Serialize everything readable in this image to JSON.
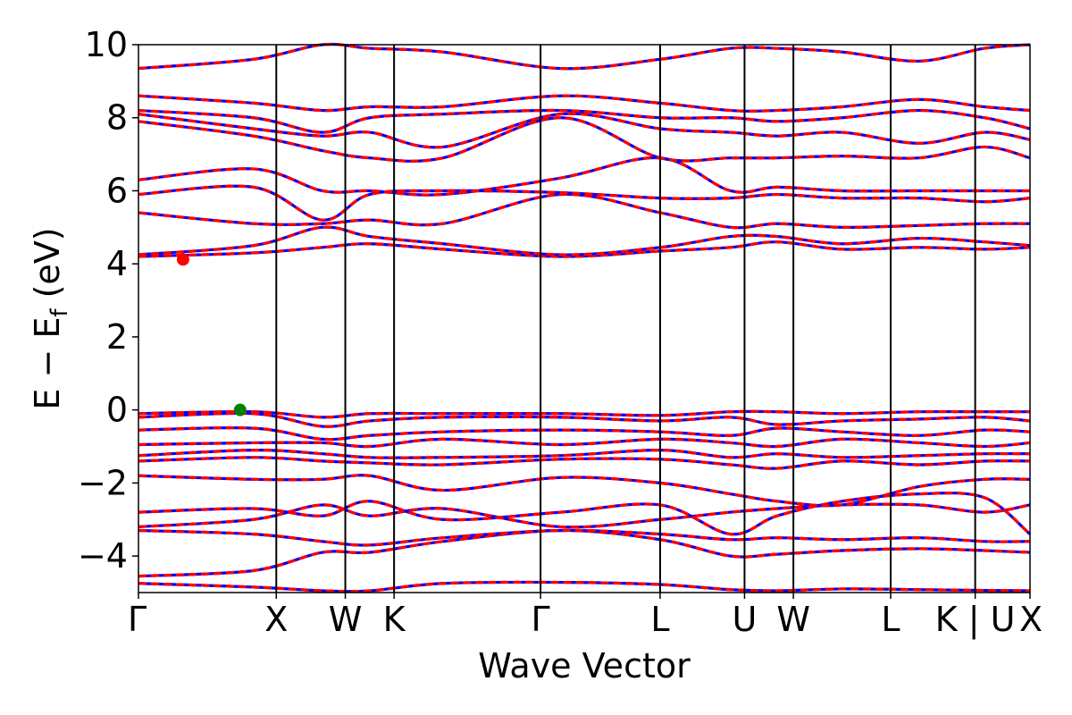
{
  "chart_data": {
    "type": "line",
    "title": "",
    "xlabel": "Wave Vector",
    "ylabel_main": "E − E",
    "ylabel_sub": "f",
    "ylabel_unit": " (eV)",
    "ylim": [
      -5,
      10
    ],
    "yticks": [
      {
        "value": -4,
        "label": "−4"
      },
      {
        "value": -2,
        "label": "−2"
      },
      {
        "value": 0,
        "label": "0"
      },
      {
        "value": 2,
        "label": "2"
      },
      {
        "value": 4,
        "label": "4"
      },
      {
        "value": 6,
        "label": "6"
      },
      {
        "value": 8,
        "label": "8"
      },
      {
        "value": 10,
        "label": "10"
      }
    ],
    "xlim": [
      0,
      1
    ],
    "kpath": [
      {
        "label": "Γ",
        "pos": 0.0
      },
      {
        "label": "X",
        "pos": 0.1546
      },
      {
        "label": "W",
        "pos": 0.232
      },
      {
        "label": "K",
        "pos": 0.2867
      },
      {
        "label": "Γ",
        "pos": 0.451
      },
      {
        "label": "L",
        "pos": 0.5851
      },
      {
        "label": "U",
        "pos": 0.6798
      },
      {
        "label": "W",
        "pos": 0.7346
      },
      {
        "label": "L",
        "pos": 0.8437
      },
      {
        "label": "K | U",
        "pos": 0.9385
      },
      {
        "label": "X",
        "pos": 1.0
      }
    ],
    "colors": {
      "band_primary": "#ff0000",
      "band_secondary": "#0000ff",
      "vbm": "#008000",
      "cbm": "#ff0000"
    },
    "grid": false,
    "legend": "none",
    "band_edges": [
      {
        "name": "CBM",
        "x": 0.05,
        "y": 4.12
      },
      {
        "name": "VBM",
        "x": 0.114,
        "y": 0.0
      }
    ],
    "bands": [
      {
        "name": "valence-1",
        "y": [
          -4.75,
          -4.85,
          -4.95,
          -4.95,
          -4.75,
          -4.72,
          -4.78,
          -4.92,
          -4.95,
          -4.9,
          -4.92,
          -4.94,
          -4.95
        ]
      },
      {
        "name": "valence-2",
        "y": [
          -4.55,
          -4.4,
          -3.9,
          -3.9,
          -3.6,
          -3.3,
          -3.55,
          -4.0,
          -3.95,
          -3.85,
          -3.8,
          -3.85,
          -3.9
        ]
      },
      {
        "name": "valence-3",
        "y": [
          -3.3,
          -3.4,
          -3.6,
          -3.7,
          -3.5,
          -3.3,
          -3.4,
          -3.55,
          -3.5,
          -3.55,
          -3.5,
          -3.6,
          -3.6
        ]
      },
      {
        "name": "valence-4",
        "y": [
          -3.2,
          -3.0,
          -2.6,
          -2.9,
          -2.7,
          -3.2,
          -3.0,
          -2.8,
          -2.7,
          -2.6,
          -2.6,
          -2.8,
          -2.6
        ]
      },
      {
        "name": "valence-5",
        "y": [
          -2.8,
          -2.7,
          -2.9,
          -2.5,
          -3.0,
          -2.8,
          -2.6,
          -3.4,
          -2.9,
          -2.5,
          -2.3,
          -2.4,
          -3.4
        ]
      },
      {
        "name": "valence-6",
        "y": [
          -1.8,
          -1.9,
          -1.9,
          -1.8,
          -2.2,
          -1.85,
          -2.0,
          -2.3,
          -2.5,
          -2.6,
          -2.1,
          -1.9,
          -1.9
        ]
      },
      {
        "name": "valence-7",
        "y": [
          -1.4,
          -1.3,
          -1.4,
          -1.45,
          -1.5,
          -1.35,
          -1.35,
          -1.5,
          -1.6,
          -1.4,
          -1.5,
          -1.4,
          -1.4
        ]
      },
      {
        "name": "valence-8",
        "y": [
          -1.25,
          -1.1,
          -1.2,
          -1.3,
          -1.3,
          -1.25,
          -1.1,
          -1.3,
          -1.2,
          -1.3,
          -1.25,
          -1.2,
          -1.2
        ]
      },
      {
        "name": "valence-9",
        "y": [
          -0.95,
          -0.9,
          -0.9,
          -1.0,
          -0.8,
          -0.95,
          -0.8,
          -0.9,
          -1.0,
          -0.8,
          -0.9,
          -1.0,
          -0.9
        ]
      },
      {
        "name": "valence-10",
        "y": [
          -0.55,
          -0.5,
          -0.8,
          -0.7,
          -0.6,
          -0.55,
          -0.6,
          -0.7,
          -0.5,
          -0.6,
          -0.7,
          -0.55,
          -0.6
        ]
      },
      {
        "name": "valence-11",
        "y": [
          -0.2,
          -0.1,
          -0.45,
          -0.3,
          -0.2,
          -0.2,
          -0.3,
          -0.2,
          -0.4,
          -0.3,
          -0.25,
          -0.2,
          -0.3
        ]
      },
      {
        "name": "valence-12",
        "y": [
          -0.1,
          -0.05,
          -0.2,
          -0.1,
          -0.1,
          -0.1,
          -0.15,
          -0.05,
          -0.05,
          -0.1,
          -0.05,
          -0.05,
          -0.05
        ]
      },
      {
        "name": "conduction-1",
        "y": [
          4.2,
          4.3,
          4.45,
          4.55,
          4.4,
          4.2,
          4.35,
          4.45,
          4.6,
          4.4,
          4.45,
          4.4,
          4.45
        ]
      },
      {
        "name": "conduction-2",
        "y": [
          4.25,
          4.5,
          5.0,
          4.75,
          4.55,
          4.25,
          4.45,
          4.75,
          4.75,
          4.55,
          4.7,
          4.6,
          4.5
        ]
      },
      {
        "name": "conduction-3",
        "y": [
          5.4,
          5.1,
          5.1,
          5.2,
          5.1,
          5.9,
          5.4,
          5.0,
          5.1,
          5.0,
          5.05,
          5.1,
          5.1
        ]
      },
      {
        "name": "conduction-4",
        "y": [
          5.9,
          6.1,
          5.2,
          5.9,
          6.0,
          5.95,
          5.8,
          5.8,
          5.9,
          5.8,
          5.8,
          5.7,
          5.8
        ]
      },
      {
        "name": "conduction-5",
        "y": [
          6.3,
          6.6,
          6.0,
          6.0,
          5.9,
          6.35,
          6.9,
          6.0,
          6.1,
          6.0,
          6.0,
          6.0,
          6.0
        ]
      },
      {
        "name": "conduction-6",
        "y": [
          7.9,
          7.5,
          7.1,
          6.9,
          6.9,
          8.0,
          6.9,
          6.9,
          6.9,
          6.95,
          6.9,
          7.2,
          6.9
        ]
      },
      {
        "name": "conduction-7",
        "y": [
          8.1,
          7.7,
          7.5,
          7.6,
          7.2,
          8.1,
          7.7,
          7.6,
          7.5,
          7.6,
          7.3,
          7.6,
          7.4
        ]
      },
      {
        "name": "conduction-8",
        "y": [
          8.2,
          8.0,
          7.6,
          8.0,
          8.1,
          8.2,
          8.0,
          8.0,
          7.9,
          8.0,
          8.2,
          8.0,
          7.7
        ]
      },
      {
        "name": "conduction-9",
        "y": [
          8.6,
          8.4,
          8.2,
          8.3,
          8.3,
          8.6,
          8.4,
          8.2,
          8.2,
          8.3,
          8.5,
          8.3,
          8.2
        ]
      },
      {
        "name": "conduction-10",
        "y": [
          9.35,
          9.6,
          10.0,
          9.9,
          9.8,
          9.35,
          9.6,
          9.9,
          9.9,
          9.8,
          9.55,
          9.9,
          10.0
        ]
      }
    ]
  }
}
